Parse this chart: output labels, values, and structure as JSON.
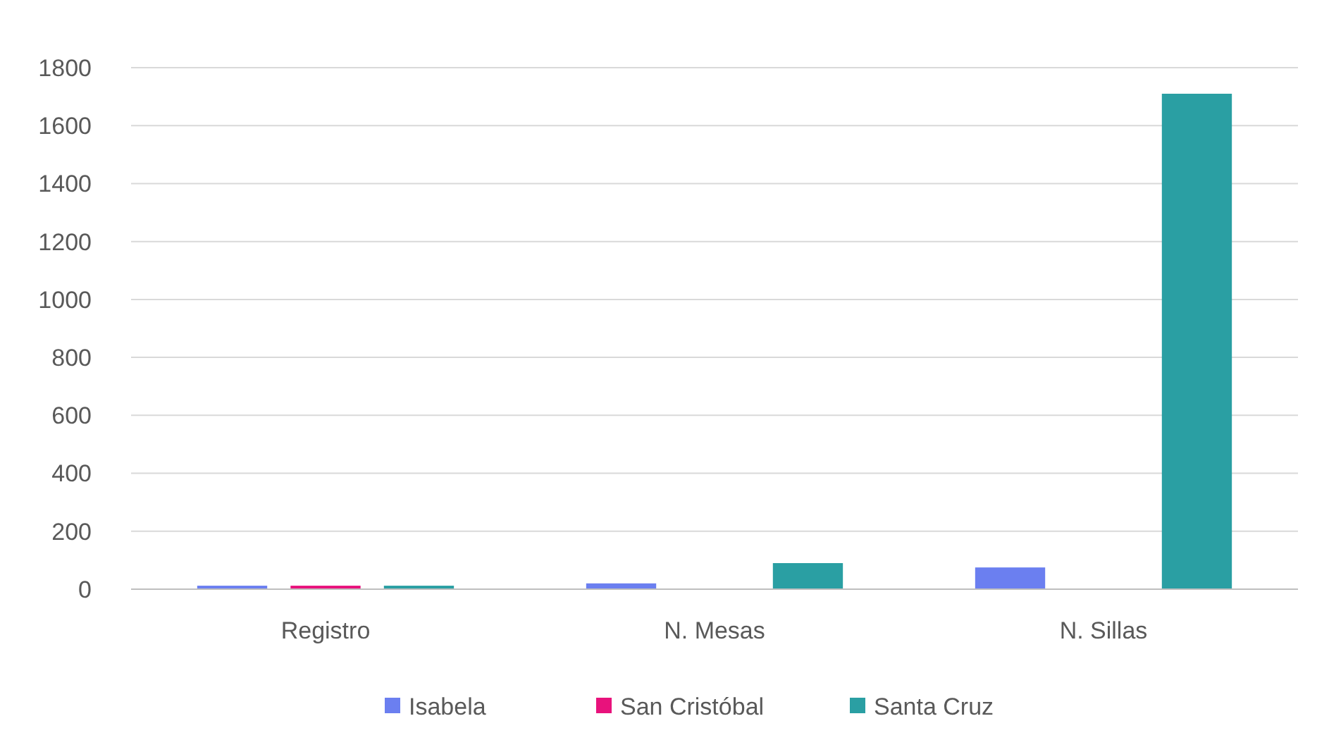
{
  "chart_data": {
    "type": "bar",
    "categories": [
      "Registro",
      "N. Mesas",
      "N. Sillas"
    ],
    "series": [
      {
        "name": "Isabela",
        "color": "#6b7ff0",
        "values": [
          12,
          20,
          75
        ]
      },
      {
        "name": "San Cristóbal",
        "color": "#e8127c",
        "values": [
          12,
          0,
          0
        ]
      },
      {
        "name": "Santa Cruz",
        "color": "#2a9fa3",
        "values": [
          12,
          90,
          1710
        ]
      }
    ],
    "ylim": [
      0,
      1800
    ],
    "yticks": [
      0,
      200,
      400,
      600,
      800,
      1000,
      1200,
      1400,
      1600,
      1800
    ],
    "grid": "y",
    "legend": "bottom"
  }
}
